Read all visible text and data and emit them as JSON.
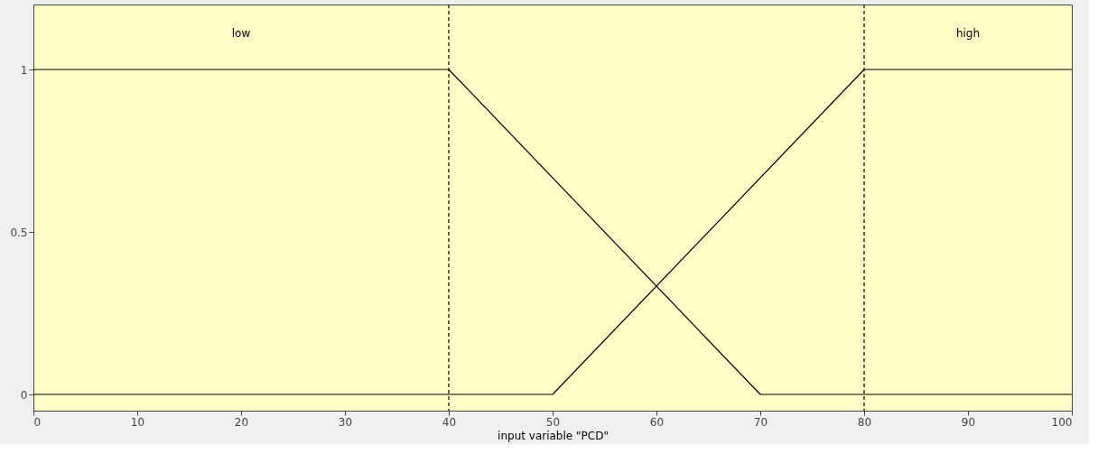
{
  "chart_data": {
    "type": "line",
    "xlabel": "input variable \"PCD\"",
    "xlim": [
      0,
      100
    ],
    "xticks": [
      0,
      10,
      20,
      30,
      40,
      50,
      60,
      70,
      80,
      90,
      100
    ],
    "ylim": [
      -0.05,
      1.2
    ],
    "yticks": [
      0,
      0.5,
      1
    ],
    "series": [
      {
        "name": "low",
        "color": "#000000",
        "x": [
          0,
          40,
          70,
          100
        ],
        "values": [
          1,
          1,
          0,
          0
        ]
      },
      {
        "name": "high",
        "color": "#000000",
        "x": [
          0,
          50,
          80,
          100
        ],
        "values": [
          0,
          0,
          1,
          1
        ]
      }
    ],
    "ref_lines": [
      {
        "axis": "x",
        "value": 40,
        "color": "#000000",
        "line_style": "dashed"
      },
      {
        "axis": "x",
        "value": 80,
        "color": "#000000",
        "line_style": "dashed"
      }
    ],
    "grid": false,
    "line_style": "solid",
    "marker": "none"
  }
}
